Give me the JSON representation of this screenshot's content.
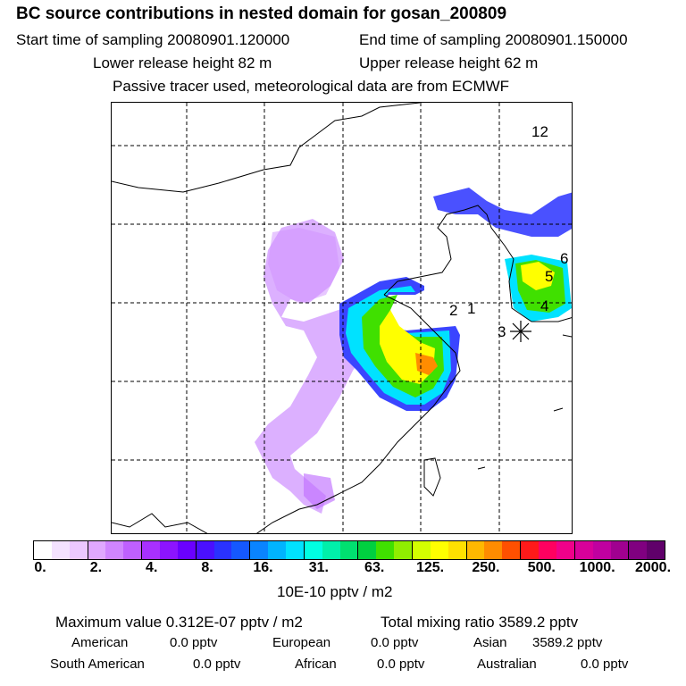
{
  "header": {
    "title": "BC  source contributions in nested domain for gosan_200809",
    "start_label": "Start time of sampling 20080901.120000",
    "end_label": "End time of sampling 20080901.150000",
    "lower_label": "Lower release height   82 m",
    "upper_label": "Upper release height   62 m",
    "note": "Passive tracer used, meteorological data are from ECMWF"
  },
  "map": {
    "point_labels": [
      "12",
      "6",
      "5",
      "4",
      "2",
      "1",
      "3"
    ]
  },
  "colorbar": {
    "colors": [
      "#ffffff",
      "#f4e2ff",
      "#ecc8ff",
      "#e0a8ff",
      "#d085ff",
      "#bf60ff",
      "#a830ff",
      "#8c14ff",
      "#6a00ff",
      "#4a10ff",
      "#2a32ff",
      "#1558ff",
      "#0a84ff",
      "#00b4ff",
      "#00e2ff",
      "#00ffe2",
      "#00f0aa",
      "#00e070",
      "#00d040",
      "#40e000",
      "#90ee00",
      "#d4ff00",
      "#ffff00",
      "#ffe000",
      "#ffb800",
      "#ff8c00",
      "#ff5000",
      "#ff1a1a",
      "#ff0060",
      "#f0008a",
      "#d8009a",
      "#c000a0",
      "#a00090",
      "#800080",
      "#60006a"
    ],
    "tick_labels": [
      "0.",
      "2.",
      "4.",
      "8.",
      "16.",
      "31.",
      "63.",
      "125.",
      "250.",
      "500.",
      "1000.",
      "2000."
    ],
    "unit": "10E-10 pptv / m2"
  },
  "footer": {
    "max_value": "Maximum value  0.312E-07 pptv / m2",
    "total_mixing": "Total mixing ratio     3589.2 pptv",
    "american": "American",
    "american_val": "0.0 pptv",
    "european": "European",
    "european_val": "0.0 pptv",
    "asian": "Asian",
    "asian_val": "3589.2 pptv",
    "south_american": "South American",
    "south_american_val": "0.0 pptv",
    "african": "African",
    "african_val": "0.0 pptv",
    "australian": "Australian",
    "australian_val": "0.0 pptv"
  }
}
